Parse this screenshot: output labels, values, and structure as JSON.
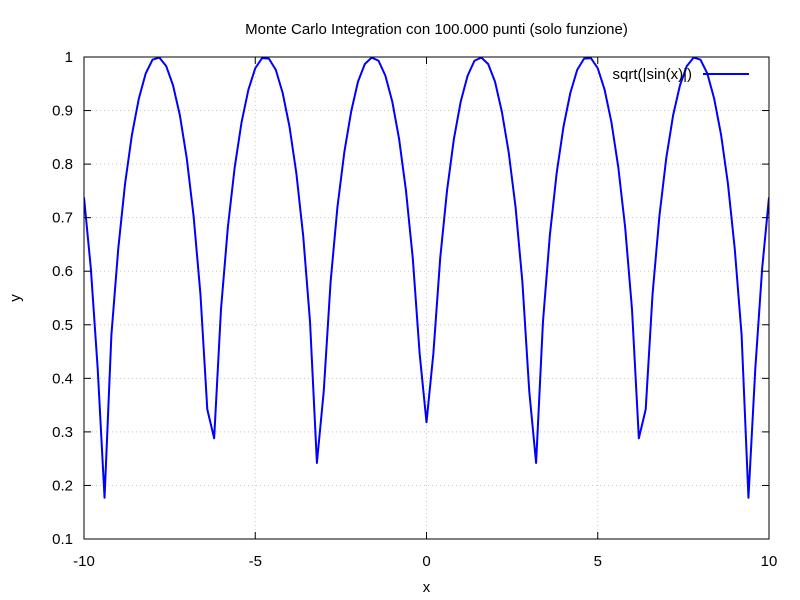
{
  "chart_data": {
    "type": "line",
    "title": "Monte Carlo Integration con 100.000 punti (solo funzione)",
    "xlabel": "x",
    "ylabel": "y",
    "xlim": [
      -10,
      10
    ],
    "ylim": [
      0.1,
      1
    ],
    "x_ticks": [
      -10,
      -5,
      0,
      5,
      10
    ],
    "x_tick_labels": [
      "-10",
      "-5",
      "0",
      "5",
      "10"
    ],
    "y_ticks": [
      0.1,
      0.2,
      0.3,
      0.4,
      0.5,
      0.6,
      0.7,
      0.8,
      0.9,
      1
    ],
    "y_tick_labels": [
      "0.1",
      "0.2",
      "0.3",
      "0.4",
      "0.5",
      "0.6",
      "0.7",
      "0.8",
      "0.9",
      "1"
    ],
    "grid": true,
    "legend_position": "top-right",
    "series": [
      {
        "name": "sqrt(|sin(x)|)",
        "color": "#0000ff",
        "x": [
          -10.0,
          -9.8,
          -9.6,
          -9.4,
          -9.2,
          -9.0,
          -8.8,
          -8.6,
          -8.4,
          -8.2,
          -8.0,
          -7.8,
          -7.6,
          -7.4,
          -7.2,
          -7.0,
          -6.8,
          -6.6,
          -6.4,
          -6.2,
          -6.0,
          -5.8,
          -5.6,
          -5.4,
          -5.2,
          -5.0,
          -4.8,
          -4.6,
          -4.4,
          -4.2,
          -4.0,
          -3.8,
          -3.6,
          -3.4,
          -3.2,
          -3.0,
          -2.8,
          -2.6,
          -2.4,
          -2.2,
          -2.0,
          -1.8,
          -1.6,
          -1.4,
          -1.2,
          -1.0,
          -0.8,
          -0.6,
          -0.4,
          -0.2,
          0.0,
          0.2,
          0.4,
          0.6,
          0.8,
          1.0,
          1.2,
          1.4,
          1.6,
          1.8,
          2.0,
          2.2,
          2.4,
          2.6,
          2.8,
          3.0,
          3.2,
          3.4,
          3.6,
          3.8,
          4.0,
          4.2,
          4.4,
          4.6,
          4.8,
          5.0,
          5.2,
          5.4,
          5.6,
          5.8,
          6.0,
          6.2,
          6.4,
          6.6,
          6.8,
          7.0,
          7.2,
          7.4,
          7.6,
          7.8,
          8.0,
          8.2,
          8.4,
          8.6,
          8.8,
          9.0,
          9.2,
          9.4,
          9.6,
          9.8,
          10.0
        ],
        "y": [
          0.738,
          0.605,
          0.418,
          0.177,
          0.481,
          0.642,
          0.764,
          0.855,
          0.922,
          0.969,
          0.995,
          0.999,
          0.983,
          0.947,
          0.891,
          0.811,
          0.703,
          0.557,
          0.342,
          0.288,
          0.529,
          0.682,
          0.794,
          0.878,
          0.939,
          0.979,
          0.998,
          0.997,
          0.976,
          0.933,
          0.87,
          0.783,
          0.666,
          0.505,
          0.242,
          0.376,
          0.58,
          0.72,
          0.822,
          0.898,
          0.954,
          0.987,
          0.999,
          0.993,
          0.965,
          0.917,
          0.847,
          0.751,
          0.624,
          0.446,
          0.318,
          0.446,
          0.624,
          0.751,
          0.847,
          0.917,
          0.965,
          0.993,
          0.999,
          0.987,
          0.954,
          0.898,
          0.822,
          0.72,
          0.58,
          0.376,
          0.242,
          0.505,
          0.666,
          0.783,
          0.87,
          0.933,
          0.976,
          0.997,
          0.998,
          0.979,
          0.939,
          0.878,
          0.794,
          0.682,
          0.529,
          0.288,
          0.342,
          0.557,
          0.703,
          0.811,
          0.891,
          0.947,
          0.983,
          0.999,
          0.995,
          0.969,
          0.922,
          0.855,
          0.764,
          0.642,
          0.481,
          0.177,
          0.418,
          0.605,
          0.738
        ]
      }
    ]
  }
}
